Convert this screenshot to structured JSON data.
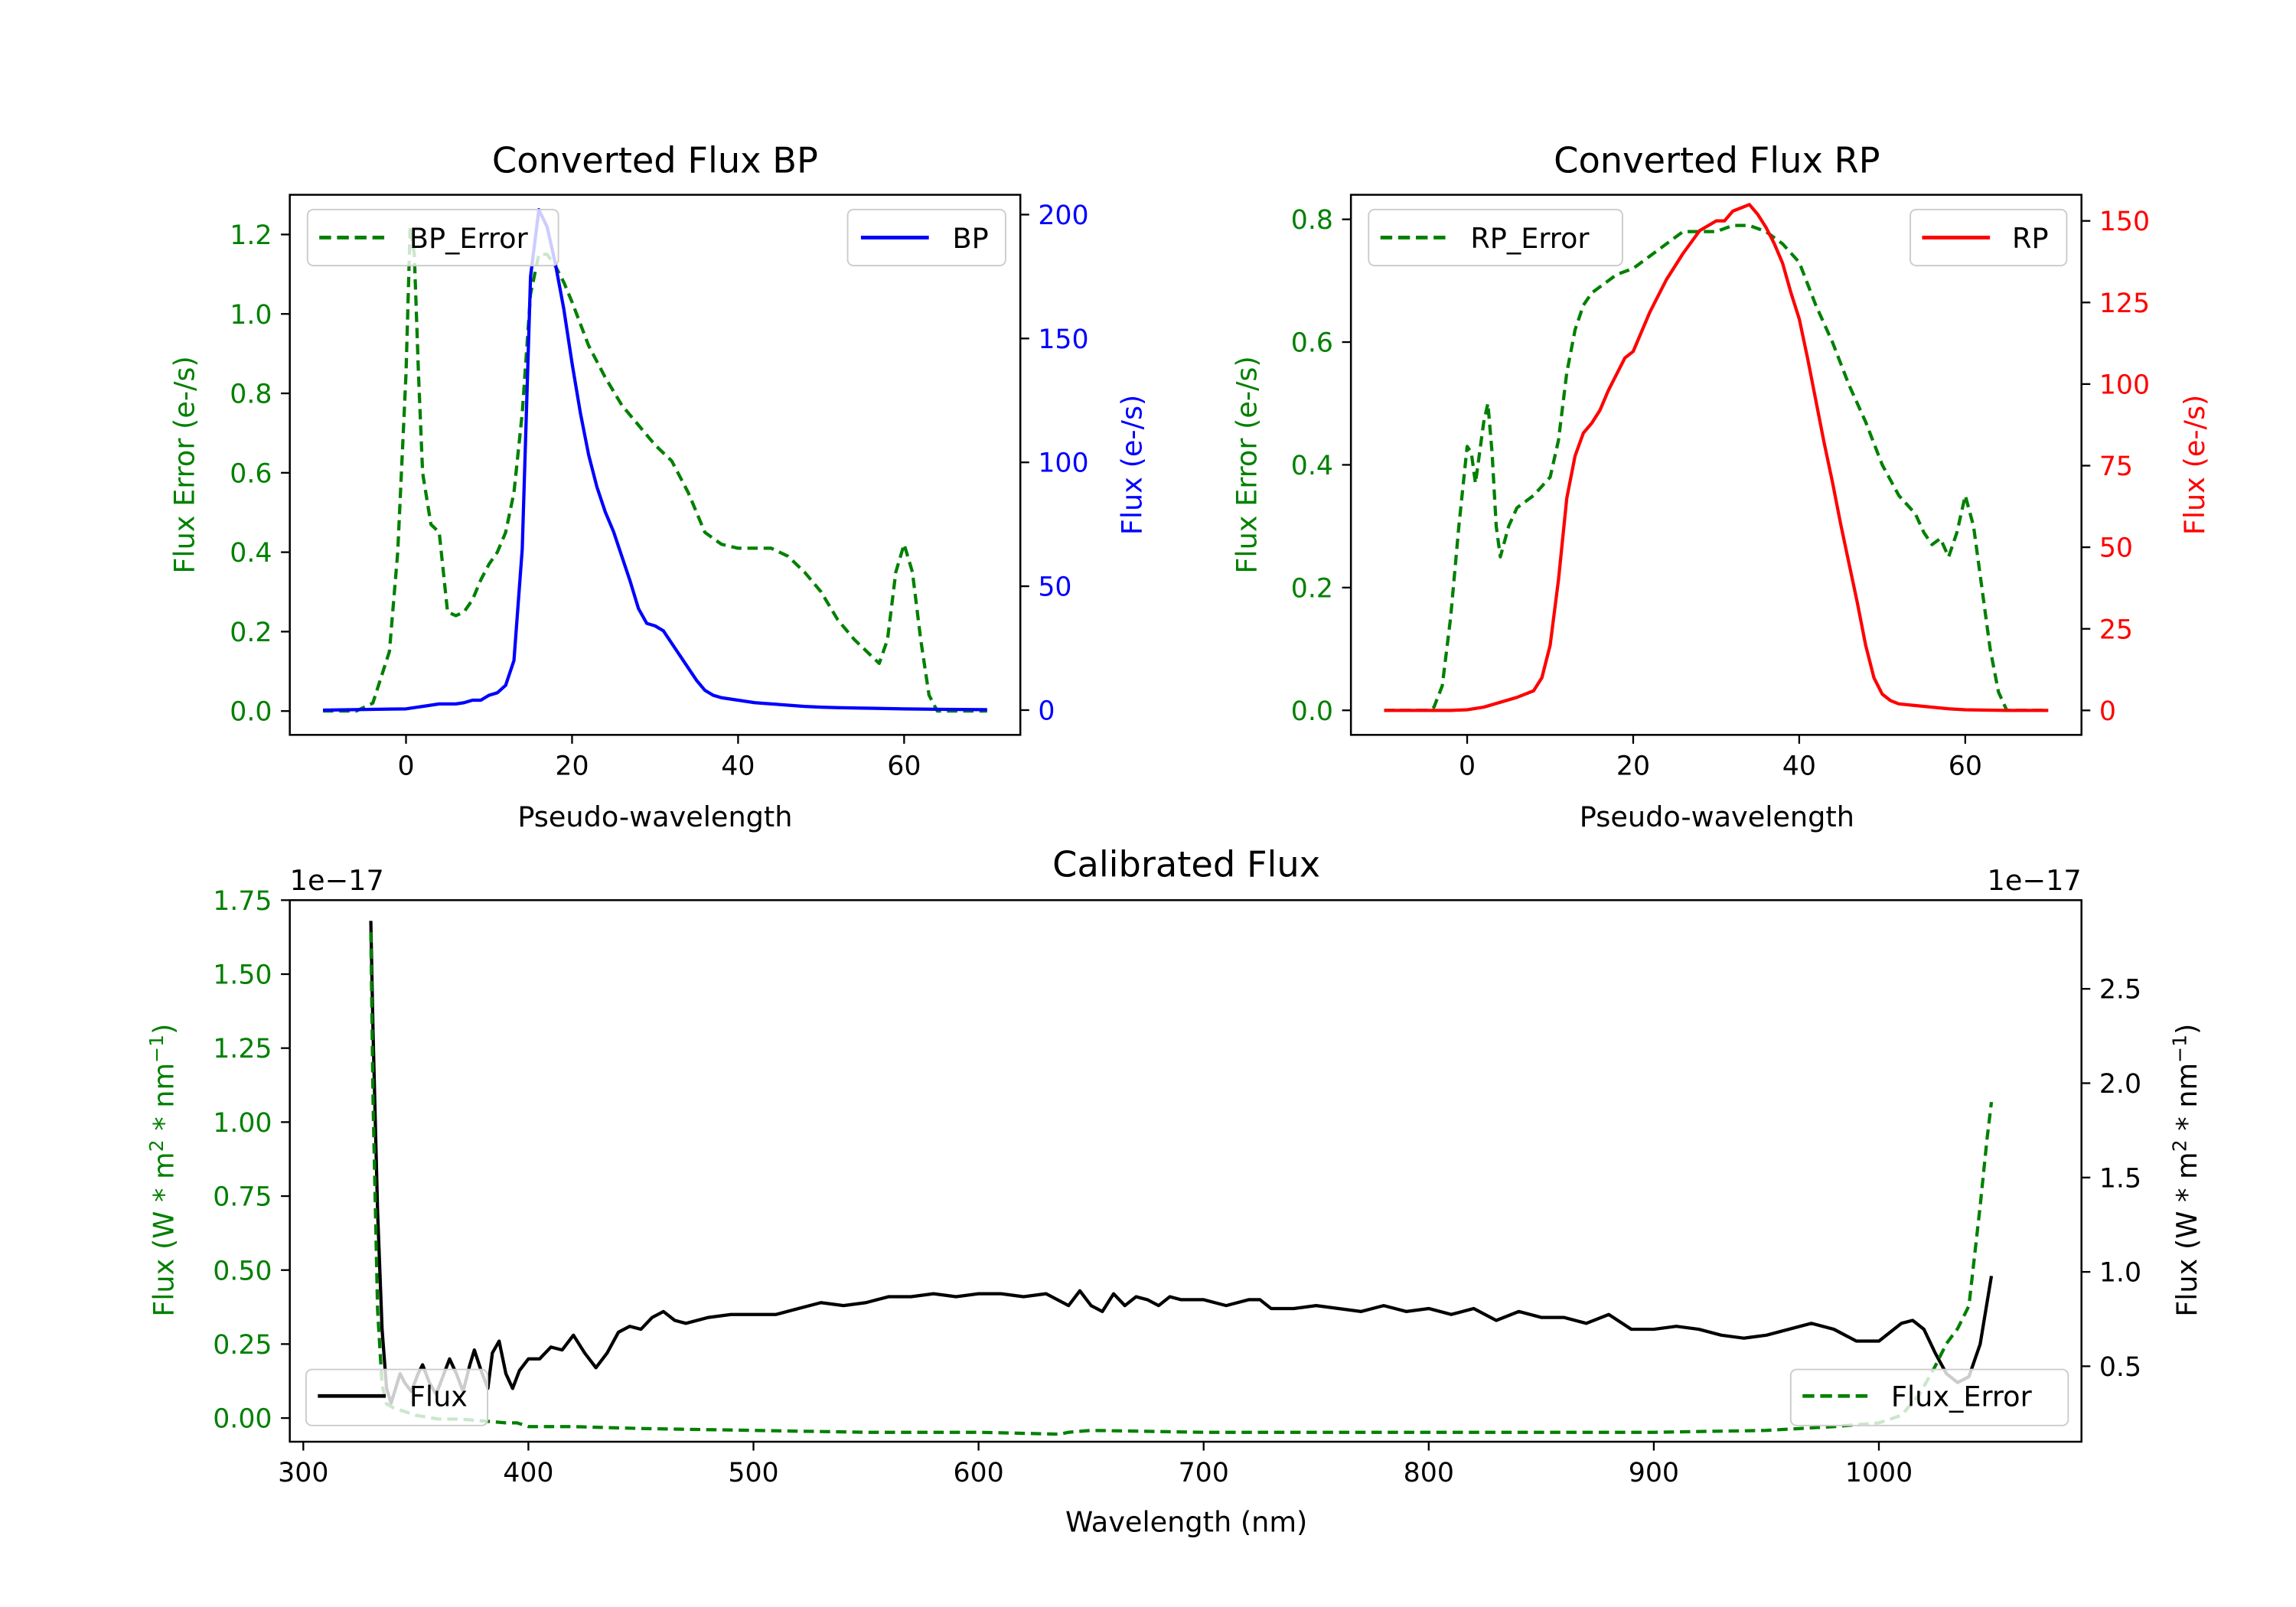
{
  "colors": {
    "green": "#008000",
    "blue": "#0000ff",
    "red": "#ff0000",
    "black": "#000000"
  },
  "chart_data": [
    {
      "id": "bp",
      "type": "line",
      "title": "Converted Flux BP",
      "xlabel": "Pseudo-wavelength",
      "ylabel_left": "Flux Error (e-/s)",
      "ylabel_right": "Flux (e-/s)",
      "xlim": [
        -14,
        74
      ],
      "ylim_left": [
        -0.06,
        1.3
      ],
      "ylim_right": [
        -10,
        208
      ],
      "xticks": [
        0,
        20,
        40,
        60
      ],
      "yticks_left": [
        0.0,
        0.2,
        0.4,
        0.6,
        0.8,
        1.0,
        1.2
      ],
      "yticks_right": [
        0,
        50,
        100,
        150,
        200
      ],
      "series": [
        {
          "name": "BP_Error",
          "axis": "left",
          "style": "dashed",
          "color": "#008000",
          "x": [
            -10,
            -6,
            -4,
            -2,
            -1,
            0,
            0.5,
            1,
            1.5,
            2,
            3,
            4,
            5,
            6,
            7,
            8,
            9,
            10,
            11,
            12,
            13,
            14,
            15,
            16,
            17,
            18,
            19,
            20,
            22,
            24,
            26,
            28,
            30,
            32,
            34,
            36,
            38,
            40,
            44,
            46,
            48,
            50,
            52,
            54,
            56,
            57,
            58,
            59,
            60,
            61,
            62,
            63,
            64,
            65,
            70
          ],
          "y": [
            0.0,
            0.0,
            0.02,
            0.15,
            0.4,
            0.85,
            1.22,
            1.15,
            0.85,
            0.6,
            0.47,
            0.45,
            0.25,
            0.24,
            0.25,
            0.28,
            0.33,
            0.37,
            0.4,
            0.45,
            0.55,
            0.75,
            1.05,
            1.15,
            1.15,
            1.12,
            1.08,
            1.03,
            0.92,
            0.84,
            0.77,
            0.72,
            0.67,
            0.63,
            0.55,
            0.45,
            0.42,
            0.41,
            0.41,
            0.39,
            0.35,
            0.3,
            0.23,
            0.18,
            0.14,
            0.12,
            0.18,
            0.35,
            0.42,
            0.35,
            0.18,
            0.04,
            0.0,
            0.0,
            0.0
          ]
        },
        {
          "name": "BP",
          "axis": "right",
          "style": "solid",
          "color": "#0000ff",
          "x": [
            -10,
            0,
            1,
            2,
            3,
            4,
            5,
            6,
            7,
            8,
            9,
            10,
            11,
            12,
            13,
            14,
            15,
            16,
            17,
            18,
            19,
            20,
            21,
            22,
            23,
            24,
            25,
            26,
            27,
            28,
            29,
            30,
            31,
            32,
            33,
            34,
            35,
            36,
            37,
            38,
            40,
            42,
            44,
            46,
            48,
            50,
            52,
            55,
            60,
            65,
            70
          ],
          "y": [
            0,
            0.5,
            1,
            1.5,
            2,
            2.5,
            2.5,
            2.5,
            3,
            4,
            4,
            6,
            7,
            10,
            20,
            65,
            175,
            202,
            195,
            180,
            162,
            140,
            120,
            103,
            90,
            80,
            72,
            62,
            52,
            41,
            35,
            34,
            32,
            27,
            22,
            17,
            12,
            8,
            6,
            5,
            4,
            3,
            2.5,
            2,
            1.5,
            1.2,
            1,
            0.8,
            0.5,
            0.3,
            0.2
          ]
        }
      ],
      "legend": [
        {
          "label": "BP_Error",
          "position": "upper left"
        },
        {
          "label": "BP",
          "position": "upper right"
        }
      ]
    },
    {
      "id": "rp",
      "type": "line",
      "title": "Converted Flux RP",
      "xlabel": "Pseudo-wavelength",
      "ylabel_left": "Flux Error (e-/s)",
      "ylabel_right": "Flux (e-/s)",
      "xlim": [
        -14,
        74
      ],
      "ylim_left": [
        -0.04,
        0.84
      ],
      "ylim_right": [
        -7.5,
        158
      ],
      "xticks": [
        0,
        20,
        40,
        60
      ],
      "yticks_left": [
        0.0,
        0.2,
        0.4,
        0.6,
        0.8
      ],
      "yticks_right": [
        0,
        25,
        50,
        75,
        100,
        125,
        150
      ],
      "series": [
        {
          "name": "RP_Error",
          "axis": "left",
          "style": "dashed",
          "color": "#008000",
          "x": [
            -10,
            -5,
            -4,
            -3,
            -2,
            -1,
            0,
            0.5,
            1,
            1.5,
            2,
            2.5,
            3,
            3.5,
            4,
            5,
            6,
            8,
            10,
            11,
            12,
            13,
            14,
            15,
            16,
            18,
            20,
            22,
            24,
            26,
            28,
            30,
            32,
            34,
            36,
            38,
            40,
            42,
            44,
            46,
            48,
            50,
            52,
            54,
            55,
            56,
            57,
            58,
            59,
            60,
            61,
            62,
            63,
            64,
            65,
            70
          ],
          "y": [
            0.0,
            0.0,
            0.005,
            0.04,
            0.15,
            0.3,
            0.43,
            0.42,
            0.37,
            0.42,
            0.47,
            0.5,
            0.42,
            0.3,
            0.25,
            0.3,
            0.33,
            0.35,
            0.38,
            0.44,
            0.55,
            0.62,
            0.66,
            0.68,
            0.69,
            0.71,
            0.72,
            0.74,
            0.76,
            0.78,
            0.78,
            0.78,
            0.79,
            0.79,
            0.78,
            0.76,
            0.73,
            0.66,
            0.6,
            0.53,
            0.47,
            0.4,
            0.35,
            0.32,
            0.29,
            0.27,
            0.28,
            0.25,
            0.29,
            0.35,
            0.3,
            0.2,
            0.1,
            0.03,
            0.0,
            0.0
          ]
        },
        {
          "name": "RP",
          "axis": "right",
          "style": "solid",
          "color": "#ff0000",
          "x": [
            -10,
            -2,
            0,
            2,
            4,
            6,
            8,
            9,
            10,
            11,
            12,
            13,
            14,
            15,
            16,
            17,
            18,
            19,
            20,
            22,
            24,
            26,
            28,
            30,
            31,
            32,
            33,
            34,
            35,
            36,
            37,
            38,
            39,
            40,
            41,
            42,
            43,
            44,
            45,
            46,
            47,
            48,
            49,
            50,
            51,
            52,
            54,
            56,
            58,
            60,
            62,
            65,
            70
          ],
          "y": [
            0,
            0,
            0.2,
            1,
            2.5,
            4,
            6,
            10,
            20,
            40,
            65,
            78,
            85,
            88,
            92,
            98,
            103,
            108,
            110,
            122,
            132,
            140,
            147,
            150,
            150,
            153,
            154,
            155,
            152,
            148,
            143,
            137,
            128,
            120,
            108,
            95,
            82,
            70,
            57,
            45,
            33,
            20,
            10,
            5,
            3,
            2,
            1.5,
            1,
            0.5,
            0.2,
            0.1,
            0,
            0
          ]
        }
      ],
      "legend": [
        {
          "label": "RP_Error",
          "position": "upper left"
        },
        {
          "label": "RP",
          "position": "upper right"
        }
      ]
    },
    {
      "id": "cal",
      "type": "line",
      "title": "Calibrated Flux",
      "xlabel": "Wavelength (nm)",
      "ylabel_left": "Flux (W * m2 * nm-1)",
      "ylabel_right": "Flux (W * m2 * nm-1)",
      "offset_left": "1e−17",
      "offset_right": "1e−17",
      "xlim": [
        294,
        1090
      ],
      "ylim_left": [
        -0.08,
        1.75
      ],
      "ylim_right": [
        0.1,
        2.97
      ],
      "xticks": [
        300,
        400,
        500,
        600,
        700,
        800,
        900,
        1000
      ],
      "yticks_left": [
        0.0,
        0.25,
        0.5,
        0.75,
        1.0,
        1.25,
        1.5,
        1.75
      ],
      "yticks_right": [
        0.5,
        1.0,
        1.5,
        2.0,
        2.5
      ],
      "series": [
        {
          "name": "Flux",
          "axis": "left",
          "style": "solid",
          "color": "#000000",
          "x": [
            330,
            331,
            333,
            335,
            337,
            339,
            341,
            343,
            345,
            348,
            351,
            353,
            356,
            359,
            362,
            365,
            368,
            371,
            374,
            376,
            379,
            382,
            384,
            387,
            390,
            393,
            396,
            400,
            405,
            410,
            415,
            420,
            425,
            430,
            435,
            440,
            445,
            450,
            455,
            460,
            465,
            470,
            480,
            490,
            500,
            510,
            520,
            530,
            540,
            550,
            560,
            570,
            580,
            590,
            600,
            610,
            620,
            630,
            640,
            645,
            650,
            655,
            660,
            665,
            670,
            675,
            680,
            685,
            690,
            700,
            710,
            720,
            725,
            730,
            740,
            750,
            760,
            770,
            780,
            790,
            800,
            810,
            820,
            830,
            840,
            850,
            860,
            870,
            880,
            890,
            900,
            910,
            920,
            930,
            940,
            950,
            960,
            970,
            980,
            990,
            1000,
            1010,
            1015,
            1020,
            1025,
            1030,
            1035,
            1040,
            1045,
            1050
          ],
          "y": [
            1.68,
            1.3,
            0.7,
            0.3,
            0.1,
            0.05,
            0.1,
            0.15,
            0.12,
            0.09,
            0.15,
            0.18,
            0.12,
            0.08,
            0.14,
            0.2,
            0.15,
            0.09,
            0.18,
            0.23,
            0.16,
            0.1,
            0.22,
            0.26,
            0.15,
            0.1,
            0.16,
            0.2,
            0.2,
            0.24,
            0.23,
            0.28,
            0.22,
            0.17,
            0.22,
            0.29,
            0.31,
            0.3,
            0.34,
            0.36,
            0.33,
            0.32,
            0.34,
            0.35,
            0.35,
            0.35,
            0.37,
            0.39,
            0.38,
            0.39,
            0.41,
            0.41,
            0.42,
            0.41,
            0.42,
            0.42,
            0.41,
            0.42,
            0.38,
            0.43,
            0.38,
            0.36,
            0.42,
            0.38,
            0.41,
            0.4,
            0.38,
            0.41,
            0.4,
            0.4,
            0.38,
            0.4,
            0.4,
            0.37,
            0.37,
            0.38,
            0.37,
            0.36,
            0.38,
            0.36,
            0.37,
            0.35,
            0.37,
            0.33,
            0.36,
            0.34,
            0.34,
            0.32,
            0.35,
            0.3,
            0.3,
            0.31,
            0.3,
            0.28,
            0.27,
            0.28,
            0.3,
            0.32,
            0.3,
            0.26,
            0.26,
            0.32,
            0.33,
            0.3,
            0.22,
            0.15,
            0.12,
            0.14,
            0.25,
            0.48
          ]
        },
        {
          "name": "Flux_Error",
          "axis": "right",
          "style": "dashed",
          "color": "#008000",
          "x": [
            330,
            331,
            333,
            335,
            337,
            340,
            345,
            350,
            360,
            370,
            380,
            390,
            395,
            400,
            420,
            450,
            500,
            550,
            600,
            636,
            640,
            650,
            700,
            760,
            800,
            850,
            900,
            950,
            980,
            1000,
            1010,
            1018,
            1025,
            1030,
            1035,
            1040,
            1045,
            1048,
            1050
          ],
          "y": [
            2.8,
            1.9,
            0.8,
            0.4,
            0.3,
            0.28,
            0.26,
            0.24,
            0.22,
            0.22,
            0.21,
            0.2,
            0.2,
            0.18,
            0.18,
            0.17,
            0.16,
            0.15,
            0.15,
            0.14,
            0.15,
            0.16,
            0.15,
            0.15,
            0.15,
            0.15,
            0.15,
            0.16,
            0.18,
            0.2,
            0.24,
            0.35,
            0.5,
            0.62,
            0.7,
            0.82,
            1.35,
            1.7,
            1.9
          ]
        }
      ],
      "legend": [
        {
          "label": "Flux",
          "position": "lower left"
        },
        {
          "label": "Flux_Error",
          "position": "lower right"
        }
      ]
    }
  ]
}
